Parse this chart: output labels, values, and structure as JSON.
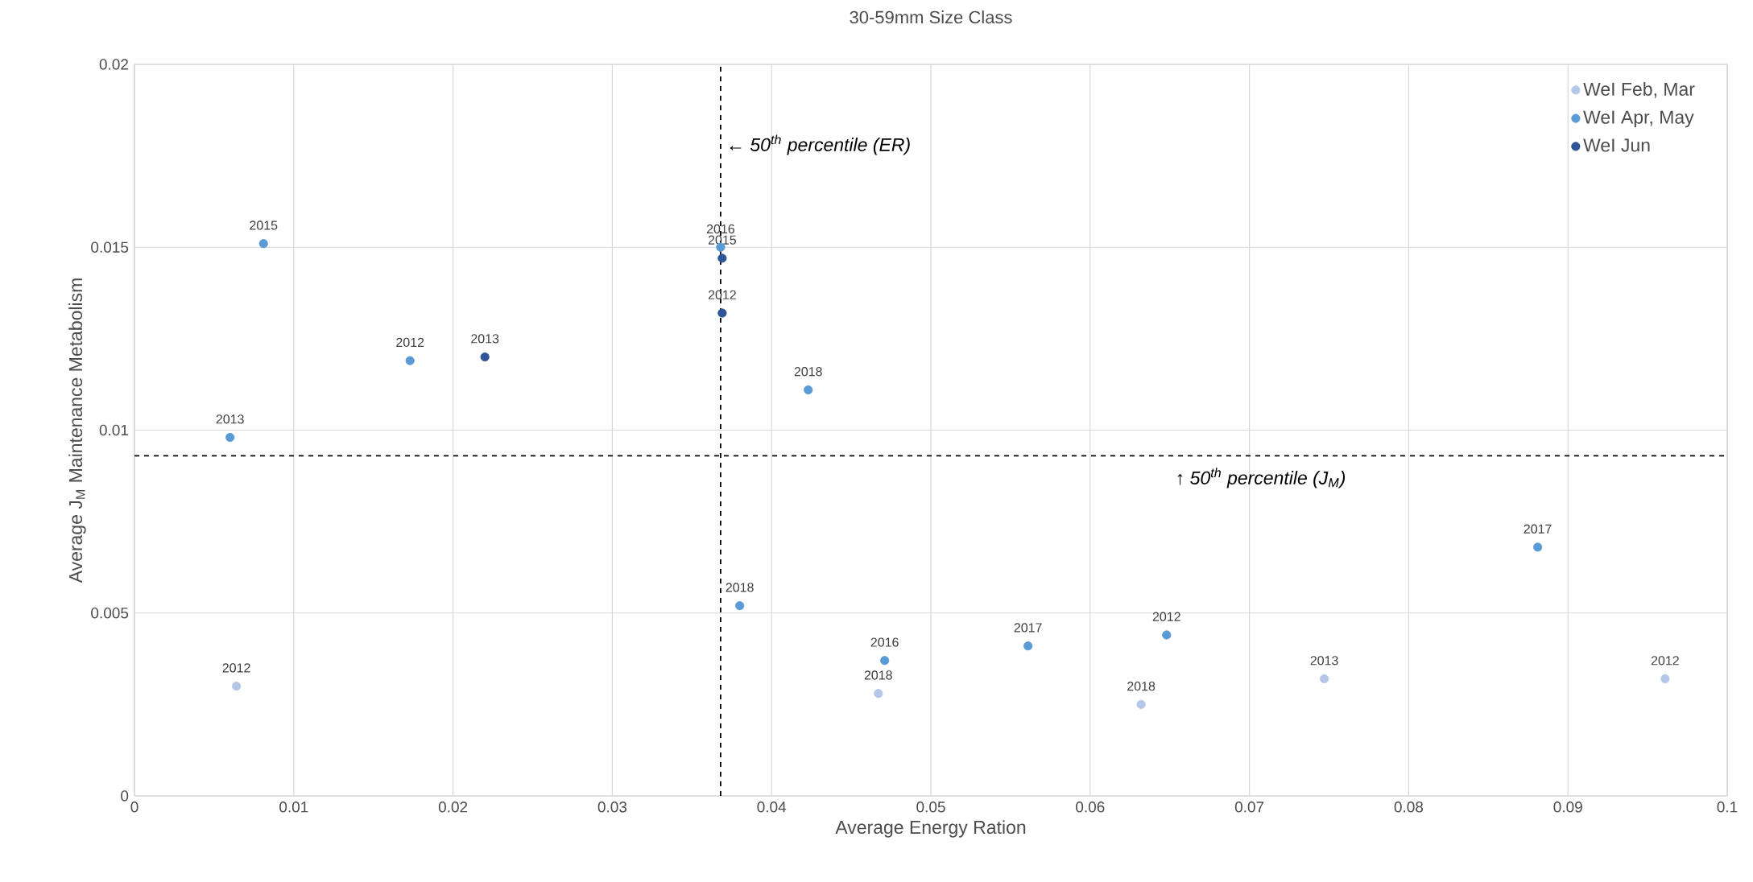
{
  "chart_data": {
    "type": "scatter",
    "title": "30-59mm Size Class",
    "xlabel": "Average Energy Ration",
    "ylabel": "Average J$_{M}$ Maintenance Metabolism",
    "xlim": [
      0,
      0.1
    ],
    "ylim": [
      0,
      0.02
    ],
    "xticks": [
      0,
      0.01,
      0.02,
      0.03,
      0.04,
      0.05,
      0.06,
      0.07,
      0.08,
      0.09,
      0.1
    ],
    "yticks": [
      0,
      0.005,
      0.01,
      0.015,
      0.02
    ],
    "grid": true,
    "legend": "top right",
    "marker": "circle",
    "series": [
      {
        "name": "WeI Feb, Mar",
        "color": "#b4c7e7",
        "x": [
          0.0064,
          0.0467,
          0.0632,
          0.0747,
          0.0961
        ],
        "values": [
          0.003,
          0.0028,
          0.0025,
          0.0032,
          0.0032
        ]
      },
      {
        "name": "WeI Apr, May",
        "color": "#5b9bd5",
        "x": [
          0.0081,
          0.006,
          0.0173,
          0.0368,
          0.0423,
          0.038,
          0.0471,
          0.0561,
          0.0648,
          0.0881
        ],
        "values": [
          0.0151,
          0.0098,
          0.0119,
          0.015,
          0.0111,
          0.0052,
          0.0037,
          0.0041,
          0.0044,
          0.0068
        ]
      },
      {
        "name": "WeI Jun",
        "color": "#2f5597",
        "x": [
          0.022,
          0.0369,
          0.0369
        ],
        "values": [
          0.012,
          0.0147,
          0.0132
        ]
      }
    ],
    "ref_lines": [
      {
        "axis": "x",
        "value": 0.0368,
        "label": "← 50$^{th}$ percentile (ER)",
        "color": "#000000",
        "line_style": "dashed"
      },
      {
        "axis": "y",
        "value": 0.0093,
        "label": "↑ 50$^{th}$ percentile (J$_{M}$)",
        "color": "#000000",
        "line_style": "dashed"
      }
    ],
    "annotations": [
      {
        "text": "2012",
        "x": 0.0064,
        "y": 0.003
      },
      {
        "text": "2018",
        "x": 0.0467,
        "y": 0.0028
      },
      {
        "text": "2018",
        "x": 0.0632,
        "y": 0.0025
      },
      {
        "text": "2013",
        "x": 0.0747,
        "y": 0.0032
      },
      {
        "text": "2012",
        "x": 0.0961,
        "y": 0.0032
      },
      {
        "text": "2015",
        "x": 0.0081,
        "y": 0.0151
      },
      {
        "text": "2013",
        "x": 0.006,
        "y": 0.0098
      },
      {
        "text": "2012",
        "x": 0.0173,
        "y": 0.0119
      },
      {
        "text": "2016",
        "x": 0.0368,
        "y": 0.015
      },
      {
        "text": "2018",
        "x": 0.0423,
        "y": 0.0111
      },
      {
        "text": "2018",
        "x": 0.038,
        "y": 0.0052
      },
      {
        "text": "2016",
        "x": 0.0471,
        "y": 0.0037
      },
      {
        "text": "2017",
        "x": 0.0561,
        "y": 0.0041
      },
      {
        "text": "2012",
        "x": 0.0648,
        "y": 0.0044
      },
      {
        "text": "2017",
        "x": 0.0881,
        "y": 0.0068
      },
      {
        "text": "2013",
        "x": 0.022,
        "y": 0.012
      },
      {
        "text": "2015",
        "x": 0.0369,
        "y": 0.0147
      },
      {
        "text": "2012",
        "x": 0.0369,
        "y": 0.0132
      }
    ]
  }
}
